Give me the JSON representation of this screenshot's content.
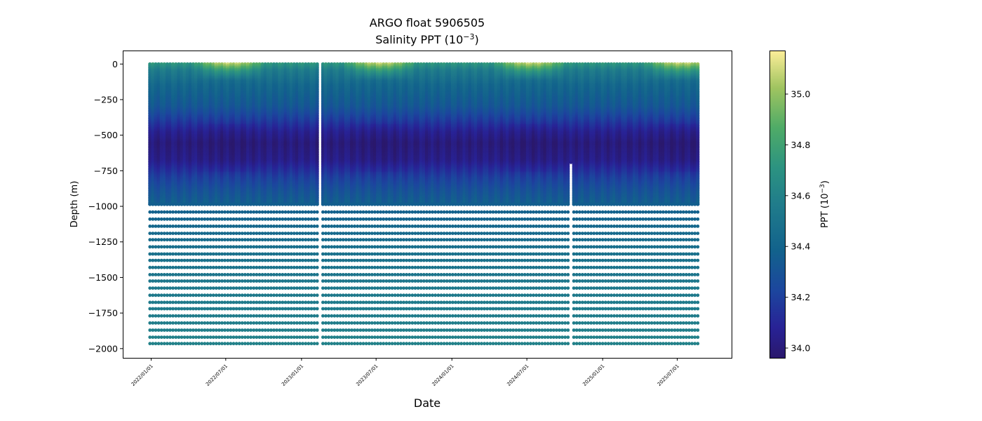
{
  "chart_data": {
    "type": "scatter",
    "title_line1": "ARGO float 5906505",
    "title_line2_prefix": "Salinity PPT (10",
    "title_line2_exp": "−3",
    "title_line2_suffix": ")",
    "xlabel": "Date",
    "ylabel": "Depth (m)",
    "colorbar_label_prefix": "PPT (10",
    "colorbar_label_exp": "−3",
    "colorbar_label_suffix": ")",
    "x_range": [
      "2021-10-24",
      "2025-11-10"
    ],
    "ylim": [
      -2065,
      95
    ],
    "y_ticks": [
      0,
      -250,
      -500,
      -750,
      -1000,
      -1250,
      -1500,
      -1750,
      -2000
    ],
    "y_tick_labels": [
      "0",
      "−250",
      "−500",
      "−750",
      "−1000",
      "−1250",
      "−1500",
      "−1750",
      "−2000"
    ],
    "x_ticks": [
      "2022-01-01",
      "2022-07-01",
      "2023-01-01",
      "2023-07-01",
      "2024-01-01",
      "2024-07-01",
      "2025-01-01",
      "2025-07-01"
    ],
    "x_tick_labels": [
      "2022/01/01",
      "2022/07/01",
      "2023/01/01",
      "2023/07/01",
      "2024/01/01",
      "2024/07/01",
      "2025/01/01",
      "2025/07/01"
    ],
    "colorbar": {
      "colormap": "haline",
      "range": [
        33.96,
        35.17
      ],
      "ticks": [
        34.0,
        34.2,
        34.4,
        34.6,
        34.8,
        35.0
      ],
      "tick_labels": [
        "34.0",
        "34.2",
        "34.4",
        "34.6",
        "34.8",
        "35.0"
      ]
    },
    "profile_interval_days": 7,
    "profile_segments": [
      {
        "start": "2021-12-29",
        "end": "2023-02-08"
      },
      {
        "start": "2023-02-22",
        "end": "2024-12-25"
      },
      {
        "start": "2025-01-01",
        "end": "2025-08-20"
      }
    ],
    "short_profile": {
      "date": "2024-10-17",
      "max_depth": -690
    },
    "dense_profile_max_depth": -985,
    "deep_sample_depths": [
      -1040,
      -1090,
      -1140,
      -1190,
      -1235,
      -1285,
      -1335,
      -1380,
      -1430,
      -1480,
      -1525,
      -1575,
      -1625,
      -1675,
      -1720,
      -1770,
      -1820,
      -1870,
      -1920,
      -1965
    ],
    "salinity_profile": [
      {
        "depth": 0,
        "value": 34.72
      },
      {
        "depth": -50,
        "value": 34.55
      },
      {
        "depth": -150,
        "value": 34.42
      },
      {
        "depth": -300,
        "value": 34.32
      },
      {
        "depth": -400,
        "value": 34.18
      },
      {
        "depth": -480,
        "value": 34.06
      },
      {
        "depth": -560,
        "value": 34.0
      },
      {
        "depth": -680,
        "value": 34.04
      },
      {
        "depth": -800,
        "value": 34.2
      },
      {
        "depth": -900,
        "value": 34.3
      },
      {
        "depth": -980,
        "value": 34.36
      },
      {
        "depth": -1300,
        "value": 34.47
      },
      {
        "depth": -1600,
        "value": 34.54
      },
      {
        "depth": -2000,
        "value": 34.6
      }
    ]
  }
}
